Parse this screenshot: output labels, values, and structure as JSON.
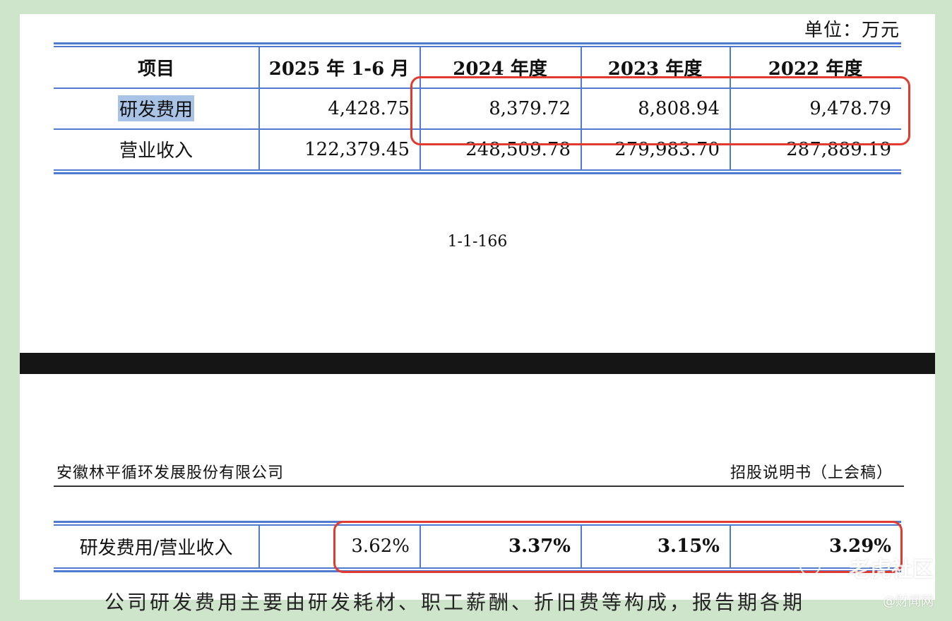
{
  "unit_label": "单位：万元",
  "table_top": {
    "headers": [
      "项目",
      "2025 年 1-6 月",
      "2024 年度",
      "2023 年度",
      "2022 年度"
    ],
    "rows": [
      {
        "label": "研发费用",
        "values": [
          "4,428.75",
          "8,379.72",
          "8,808.94",
          "9,478.79"
        ]
      },
      {
        "label": "营业收入",
        "values": [
          "122,379.45",
          "248,509.78",
          "279,983.70",
          "287,889.19"
        ]
      }
    ]
  },
  "page_number": "1-1-166",
  "page_header": {
    "company": "安徽林平循环发展股份有限公司",
    "doc_type": "招股说明书（上会稿）"
  },
  "table_bottom": {
    "row": {
      "label": "研发费用/营业收入",
      "values": [
        "3.62%",
        "3.37%",
        "3.15%",
        "3.29%"
      ]
    }
  },
  "cutoff_text": "公司研发费用主要由研发耗材、职工薪酬、折旧费等构成，报告期各期",
  "watermark": {
    "logo": "老虎社区",
    "sub": "@财闻网"
  },
  "colors": {
    "rule": "#4f7ad0",
    "highlight_box": "#e23a2f",
    "selection": "#a9c3e6"
  }
}
